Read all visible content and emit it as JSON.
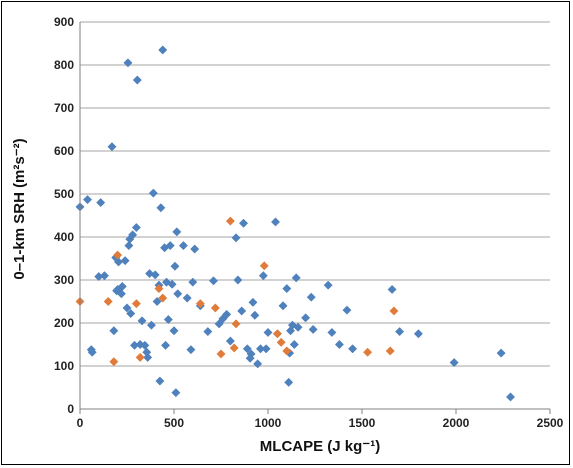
{
  "chart_data": {
    "type": "scatter",
    "title": "",
    "xlabel": "MLCAPE (J kg⁻¹)",
    "ylabel": "0–1-km SRH (m²s⁻²)",
    "xlim": [
      0,
      2500
    ],
    "ylim": [
      0,
      900
    ],
    "xticks": [
      "0",
      "500",
      "1000",
      "1500",
      "2000",
      "2500"
    ],
    "yticks": [
      "0",
      "100",
      "200",
      "300",
      "400",
      "500",
      "600",
      "700",
      "800",
      "900"
    ],
    "grid": "horizontal",
    "series": [
      {
        "color": "#4F81BD",
        "marker": "diamond",
        "points": [
          [
            0,
            470
          ],
          [
            40,
            487
          ],
          [
            60,
            138
          ],
          [
            65,
            132
          ],
          [
            100,
            308
          ],
          [
            110,
            480
          ],
          [
            130,
            310
          ],
          [
            170,
            610
          ],
          [
            180,
            182
          ],
          [
            190,
            352
          ],
          [
            195,
            275
          ],
          [
            200,
            278
          ],
          [
            205,
            342
          ],
          [
            220,
            268
          ],
          [
            225,
            285
          ],
          [
            240,
            345
          ],
          [
            250,
            235
          ],
          [
            255,
            805
          ],
          [
            260,
            380
          ],
          [
            265,
            395
          ],
          [
            270,
            222
          ],
          [
            280,
            405
          ],
          [
            290,
            148
          ],
          [
            300,
            422
          ],
          [
            305,
            765
          ],
          [
            320,
            150
          ],
          [
            330,
            205
          ],
          [
            345,
            148
          ],
          [
            355,
            132
          ],
          [
            360,
            120
          ],
          [
            370,
            315
          ],
          [
            380,
            195
          ],
          [
            390,
            502
          ],
          [
            400,
            312
          ],
          [
            410,
            250
          ],
          [
            420,
            288
          ],
          [
            425,
            65
          ],
          [
            430,
            468
          ],
          [
            440,
            835
          ],
          [
            450,
            375
          ],
          [
            455,
            148
          ],
          [
            460,
            295
          ],
          [
            470,
            208
          ],
          [
            480,
            380
          ],
          [
            490,
            290
          ],
          [
            500,
            182
          ],
          [
            505,
            332
          ],
          [
            510,
            38
          ],
          [
            515,
            412
          ],
          [
            520,
            268
          ],
          [
            550,
            380
          ],
          [
            570,
            258
          ],
          [
            590,
            138
          ],
          [
            600,
            295
          ],
          [
            610,
            372
          ],
          [
            640,
            240
          ],
          [
            680,
            180
          ],
          [
            710,
            298
          ],
          [
            740,
            198
          ],
          [
            760,
            210
          ],
          [
            780,
            220
          ],
          [
            800,
            158
          ],
          [
            830,
            398
          ],
          [
            840,
            300
          ],
          [
            860,
            228
          ],
          [
            870,
            432
          ],
          [
            890,
            140
          ],
          [
            905,
            118
          ],
          [
            910,
            128
          ],
          [
            920,
            248
          ],
          [
            930,
            218
          ],
          [
            945,
            105
          ],
          [
            960,
            140
          ],
          [
            975,
            310
          ],
          [
            990,
            140
          ],
          [
            1000,
            178
          ],
          [
            1040,
            435
          ],
          [
            1050,
            175
          ],
          [
            1080,
            240
          ],
          [
            1100,
            280
          ],
          [
            1110,
            62
          ],
          [
            1115,
            130
          ],
          [
            1120,
            182
          ],
          [
            1130,
            195
          ],
          [
            1140,
            150
          ],
          [
            1150,
            305
          ],
          [
            1160,
            190
          ],
          [
            1200,
            212
          ],
          [
            1230,
            260
          ],
          [
            1240,
            185
          ],
          [
            1320,
            288
          ],
          [
            1340,
            178
          ],
          [
            1380,
            150
          ],
          [
            1420,
            230
          ],
          [
            1450,
            140
          ],
          [
            1660,
            278
          ],
          [
            1700,
            180
          ],
          [
            1800,
            175
          ],
          [
            1990,
            108
          ],
          [
            2240,
            130
          ],
          [
            2290,
            28
          ]
        ]
      },
      {
        "color": "#E07B39",
        "marker": "diamond",
        "points": [
          [
            0,
            250
          ],
          [
            150,
            250
          ],
          [
            180,
            110
          ],
          [
            200,
            358
          ],
          [
            300,
            245
          ],
          [
            320,
            120
          ],
          [
            420,
            280
          ],
          [
            440,
            258
          ],
          [
            640,
            245
          ],
          [
            720,
            235
          ],
          [
            750,
            128
          ],
          [
            800,
            437
          ],
          [
            820,
            142
          ],
          [
            830,
            198
          ],
          [
            980,
            333
          ],
          [
            1050,
            175
          ],
          [
            1070,
            155
          ],
          [
            1100,
            135
          ],
          [
            1530,
            132
          ],
          [
            1650,
            135
          ],
          [
            1670,
            228
          ]
        ]
      }
    ]
  }
}
